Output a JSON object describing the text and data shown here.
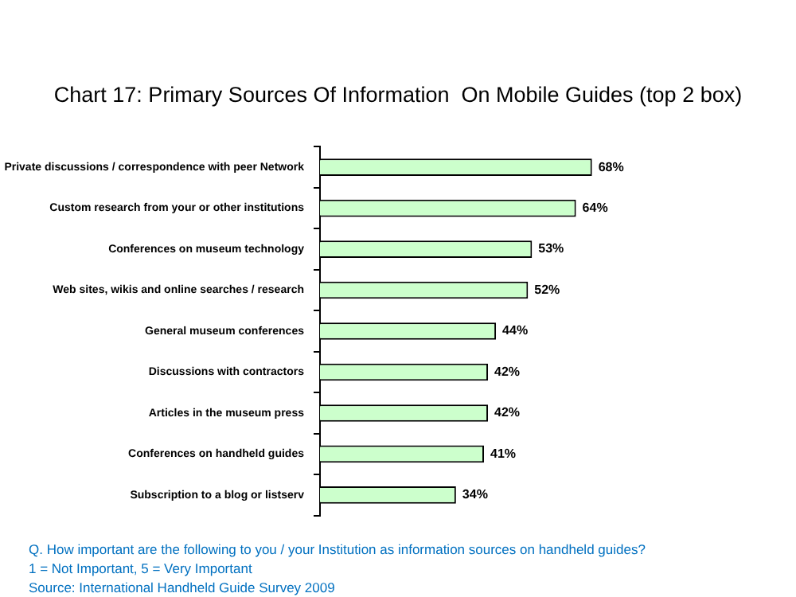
{
  "chart_data": {
    "type": "bar",
    "orientation": "horizontal",
    "title": "Chart 17: Primary Sources Of Information  On Mobile Guides (top 2 box)",
    "categories": [
      "Private discussions / correspondence with peer Network",
      "Custom research from your or other institutions",
      "Conferences on museum technology",
      "Web sites, wikis and online searches / research",
      "General museum conferences",
      "Discussions with contractors",
      "Articles in the museum press",
      "Conferences on handheld guides",
      "Subscription to a blog or listserv"
    ],
    "values": [
      68,
      64,
      53,
      52,
      44,
      42,
      42,
      41,
      34
    ],
    "value_labels": [
      "68%",
      "64%",
      "53%",
      "52%",
      "44%",
      "42%",
      "42%",
      "41%",
      "34%"
    ],
    "color": "#ccffcc",
    "annotations": [
      "Q. How important are the following to you / your Institution as information sources on handheld guides?",
      "1 = Not Important, 5 = Very Important",
      "Source: International Handheld Guide Survey 2009"
    ]
  }
}
